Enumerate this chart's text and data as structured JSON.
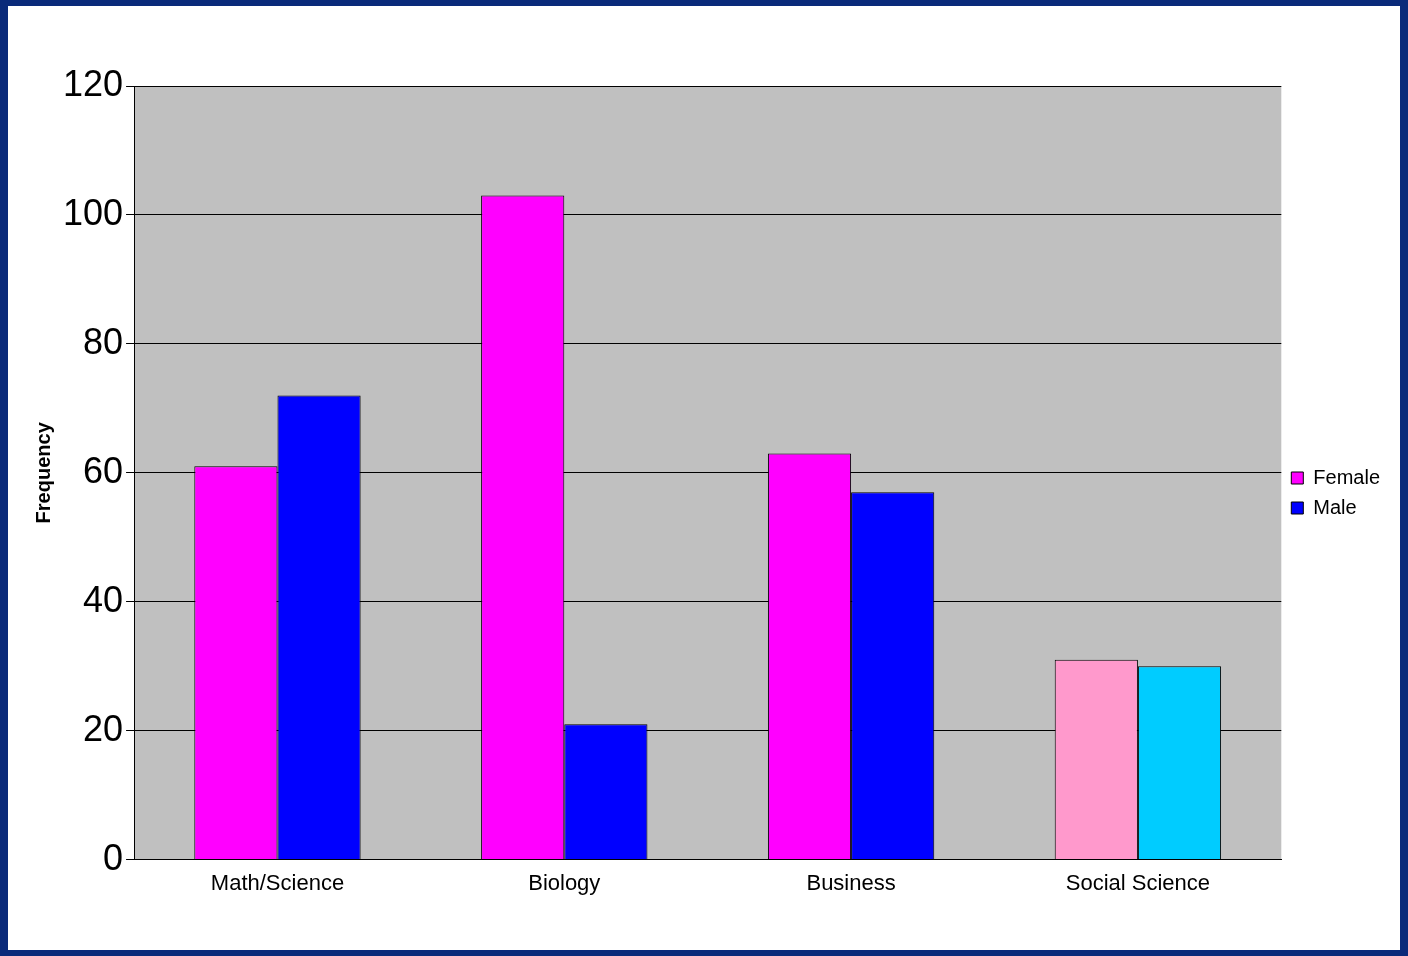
{
  "chart_data": {
    "type": "bar",
    "ylabel": "Frequency",
    "categories": [
      "Math/Science",
      "Biology",
      "Business",
      "Social Science"
    ],
    "series": [
      {
        "name": "Female",
        "color": "#ff00ff",
        "colors": [
          "#ff00ff",
          "#ff00ff",
          "#ff00ff",
          "#ff99cc"
        ],
        "values": [
          61,
          103,
          63,
          31
        ]
      },
      {
        "name": "Male",
        "color": "#0000ff",
        "colors": [
          "#0000ff",
          "#0000ff",
          "#0000ff",
          "#00ccff"
        ],
        "values": [
          72,
          21,
          57,
          30
        ]
      }
    ],
    "ylim": [
      0,
      120
    ],
    "yticks": [
      0,
      20,
      40,
      60,
      80,
      100,
      120
    ],
    "grid": "y",
    "legend": "right"
  }
}
